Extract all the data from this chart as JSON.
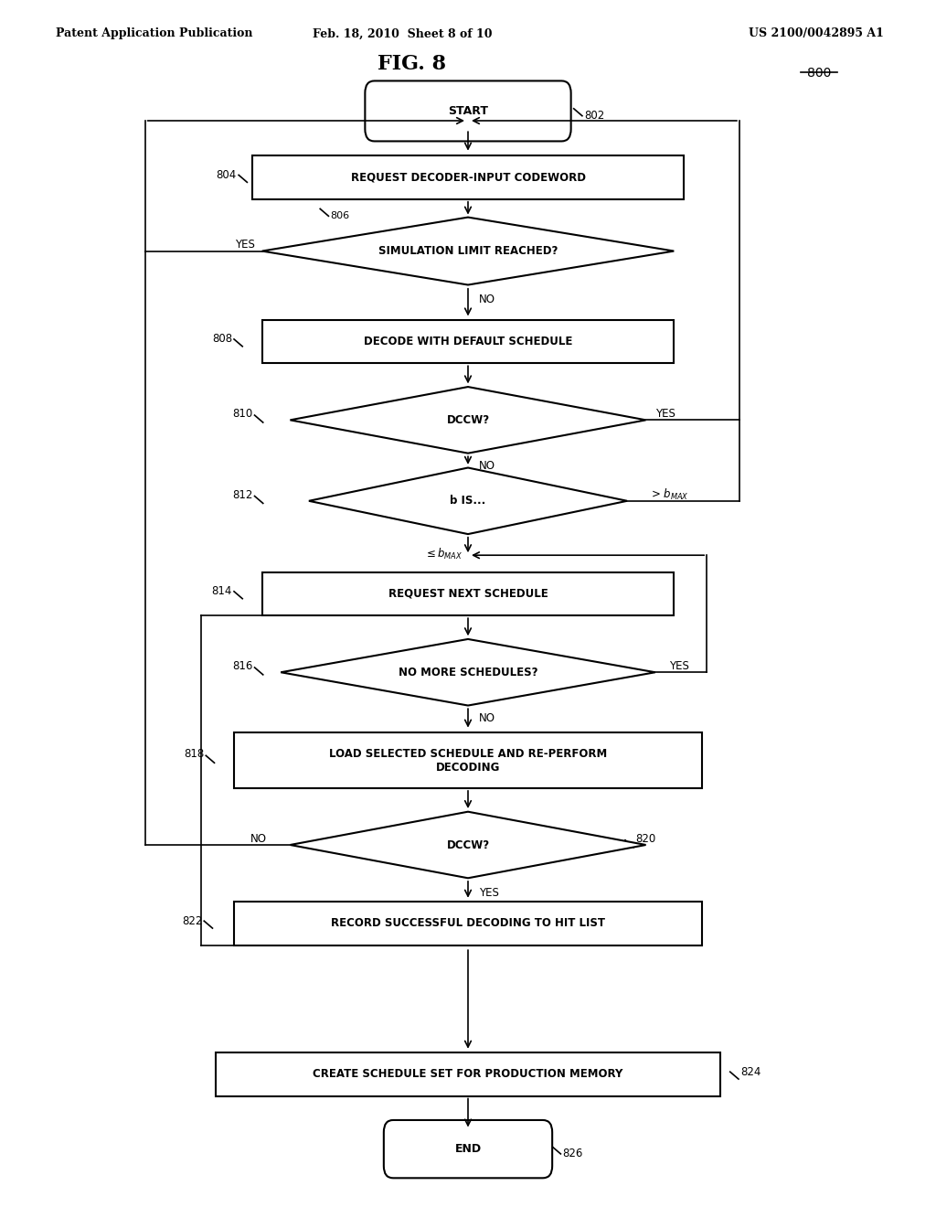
{
  "title": "FIG. 8",
  "header_left": "Patent Application Publication",
  "header_center": "Feb. 18, 2010  Sheet 8 of 10",
  "header_right": "US 2100/0042895 A1",
  "fig_number": "800",
  "background": "#ffffff"
}
